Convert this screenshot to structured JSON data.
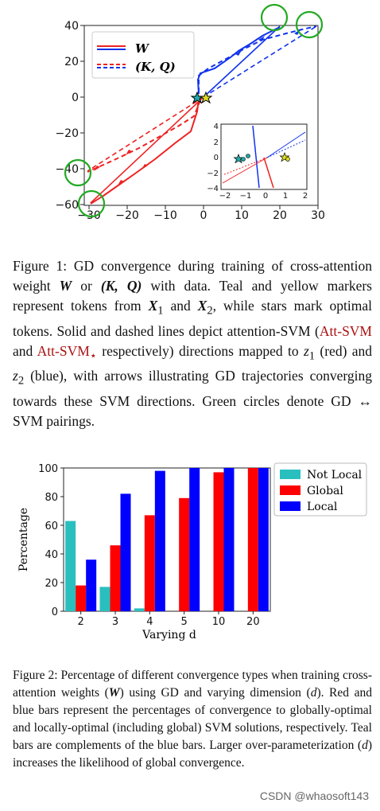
{
  "figure1": {
    "legend": {
      "w_label": "W",
      "kq_label": "(K, Q)"
    },
    "x_ticks": [
      "−30",
      "−20",
      "−10",
      "0",
      "10",
      "20",
      "30"
    ],
    "y_ticks": [
      "40",
      "20",
      "0",
      "−20",
      "−40",
      "−60"
    ],
    "inset": {
      "x_ticks": [
        "−2",
        "−1",
        "0",
        "1",
        "2"
      ],
      "y_ticks": [
        "4",
        "2",
        "0",
        "−2",
        "−4"
      ]
    },
    "caption": {
      "label": "Figure 1:",
      "text_1": " GD convergence during training of cross-attention weight ",
      "w": "W",
      "or": " or ",
      "kq": "(K, Q)",
      "text_2": " with data. Teal and yellow markers represent tokens from ",
      "x1": "X",
      "x1_sub": "1",
      "and": " and ",
      "x2": "X",
      "x2_sub": "2",
      "text_3": ", while stars mark optimal tokens. Solid and dashed lines depict attention-SVM (",
      "svm1": "Att-SVM",
      "and2": " and ",
      "svm2": "Att-SVM",
      "svm2_sub": "⋆",
      "text_4": " respectively) directions mapped to ",
      "z1": "z",
      "z1_sub": "1",
      "text_5": " (red) and ",
      "z2": "z",
      "z2_sub": "2",
      "text_6": " (blue), with arrows illustrating GD trajectories converging towards these SVM directions. Green circles denote GD ↔ SVM pairings."
    }
  },
  "chart_data": {
    "type": "bar",
    "categories": [
      "2",
      "3",
      "4",
      "5",
      "10",
      "20"
    ],
    "series": [
      {
        "name": "Not Local",
        "color": "#2abfbf",
        "values": [
          63,
          17,
          2,
          0,
          0,
          0
        ]
      },
      {
        "name": "Global",
        "color": "#ff0000",
        "values": [
          18,
          46,
          67,
          79,
          97,
          100
        ]
      },
      {
        "name": "Local",
        "color": "#0000ff",
        "values": [
          36,
          82,
          98,
          100,
          100,
          100
        ]
      }
    ],
    "xlabel": "Varying d",
    "ylabel": "Percentage",
    "ylim": [
      0,
      100
    ],
    "yticks": [
      "0",
      "20",
      "40",
      "60",
      "80",
      "100"
    ],
    "legend_position": "top-right"
  },
  "figure2": {
    "caption": {
      "label": "Figure 2:",
      "text_1": " Percentage of different convergence types when training cross-attention weights (",
      "w": "W",
      "text_2": ") using GD and varying dimension (",
      "d": "d",
      "text_3": "). Red and blue bars represent the percentages of convergence to globally-optimal and locally-optimal (including global) SVM solutions, respectively. Teal bars are complements of the blue bars. Larger over-parameterization (",
      "d2": "d",
      "text_4": ") increases the likelihood of global convergence."
    }
  },
  "watermark": "CSDN @whaosoft143"
}
